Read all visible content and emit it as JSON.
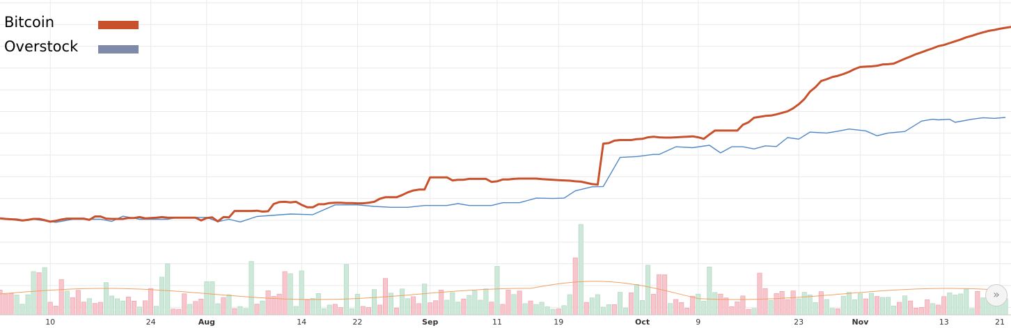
{
  "legend": {
    "items": [
      {
        "label": "Bitcoin",
        "color": "#c8502a"
      },
      {
        "label": "Overstock",
        "color": "#7e8aa8"
      }
    ]
  },
  "scroll_button": {
    "glyph": "»"
  },
  "chart_data": {
    "type": "line",
    "title": "",
    "xlabel": "",
    "ylabel": "",
    "grid": true,
    "legend_position": "top-left",
    "x_ticks": [
      {
        "label": "10",
        "index": 9,
        "major": false
      },
      {
        "label": "24",
        "index": 27,
        "major": false
      },
      {
        "label": "Aug",
        "index": 37,
        "major": true
      },
      {
        "label": "14",
        "index": 54,
        "major": false
      },
      {
        "label": "22",
        "index": 64,
        "major": false
      },
      {
        "label": "Sep",
        "index": 77,
        "major": true
      },
      {
        "label": "11",
        "index": 89,
        "major": false
      },
      {
        "label": "19",
        "index": 100,
        "major": false
      },
      {
        "label": "Oct",
        "index": 115,
        "major": true
      },
      {
        "label": "9",
        "index": 125,
        "major": false
      },
      {
        "label": "23",
        "index": 143,
        "major": false
      },
      {
        "label": "Nov",
        "index": 154,
        "major": true
      },
      {
        "label": "13",
        "index": 169,
        "major": false
      },
      {
        "label": "21",
        "index": 179,
        "major": false
      }
    ],
    "ylim": [
      0,
      1
    ],
    "volume_ylim": [
      0,
      1
    ],
    "series": [
      {
        "name": "Bitcoin",
        "color": "#c8502a",
        "kind": "line",
        "values": [
          0.286,
          0.284,
          0.283,
          0.282,
          0.279,
          0.281,
          0.284,
          0.284,
          0.28,
          0.275,
          0.278,
          0.282,
          0.285,
          0.285,
          0.285,
          0.285,
          0.281,
          0.292,
          0.292,
          0.285,
          0.284,
          0.284,
          0.284,
          0.287,
          0.287,
          0.29,
          0.286,
          0.287,
          0.288,
          0.29,
          0.288,
          0.288,
          0.288,
          0.288,
          0.288,
          0.288,
          0.279,
          0.287,
          0.289,
          0.276,
          0.29,
          0.289,
          0.31,
          0.31,
          0.31,
          0.31,
          0.311,
          0.308,
          0.309,
          0.333,
          0.339,
          0.34,
          0.338,
          0.34,
          0.33,
          0.322,
          0.322,
          0.332,
          0.332,
          0.336,
          0.337,
          0.337,
          0.336,
          0.336,
          0.335,
          0.335,
          0.337,
          0.34,
          0.35,
          0.355,
          0.355,
          0.355,
          0.362,
          0.371,
          0.377,
          0.38,
          0.38,
          0.42,
          0.42,
          0.42,
          0.42,
          0.41,
          0.412,
          0.412,
          0.415,
          0.415,
          0.415,
          0.415,
          0.405,
          0.407,
          0.413,
          0.413,
          0.415,
          0.416,
          0.416,
          0.416,
          0.416,
          0.414,
          0.413,
          0.412,
          0.411,
          0.41,
          0.409,
          0.407,
          0.406,
          0.402,
          0.398,
          0.396,
          0.53,
          0.532,
          0.54,
          0.542,
          0.542,
          0.542,
          0.545,
          0.546,
          0.551,
          0.553,
          0.551,
          0.55,
          0.55,
          0.551,
          0.552,
          0.553,
          0.554,
          0.551,
          0.546,
          0.56,
          0.573,
          0.573,
          0.573,
          0.573,
          0.573,
          0.592,
          0.6,
          0.615,
          0.618,
          0.621,
          0.622,
          0.626,
          0.631,
          0.636,
          0.646,
          0.659,
          0.676,
          0.7,
          0.715,
          0.735,
          0.741,
          0.748,
          0.752,
          0.758,
          0.765,
          0.774,
          0.781,
          0.782,
          0.783,
          0.785,
          0.789,
          0.79,
          0.792,
          0.8,
          0.808,
          0.815,
          0.823,
          0.829,
          0.836,
          0.842,
          0.849,
          0.853,
          0.859,
          0.865,
          0.871,
          0.878,
          0.883,
          0.889,
          0.894,
          0.899,
          0.902,
          0.906,
          0.909,
          0.912,
          0.915,
          0.918,
          0.921
        ],
        "points": [
          [
            0,
            0.286
          ],
          [
            4,
            0.277
          ],
          [
            6,
            0.283
          ],
          [
            10,
            0.273
          ],
          [
            13,
            0.283
          ],
          [
            18,
            0.283
          ],
          [
            20,
            0.276
          ],
          [
            22,
            0.293
          ],
          [
            25,
            0.283
          ],
          [
            30,
            0.283
          ],
          [
            32,
            0.289
          ],
          [
            37,
            0.289
          ],
          [
            39,
            0.275
          ],
          [
            41,
            0.283
          ],
          [
            43,
            0.274
          ],
          [
            46,
            0.292
          ],
          [
            52,
            0.3
          ],
          [
            56,
            0.298
          ],
          [
            60,
            0.33
          ],
          [
            64,
            0.33
          ],
          [
            67,
            0.325
          ],
          [
            70,
            0.322
          ],
          [
            73,
            0.322
          ],
          [
            76,
            0.328
          ],
          [
            80,
            0.328
          ],
          [
            82,
            0.334
          ],
          [
            84,
            0.328
          ],
          [
            88,
            0.328
          ],
          [
            90,
            0.337
          ],
          [
            93,
            0.337
          ],
          [
            96,
            0.352
          ],
          [
            99,
            0.351
          ],
          [
            101,
            0.352
          ],
          [
            103,
            0.376
          ],
          [
            106,
            0.389
          ],
          [
            108,
            0.39
          ],
          [
            111,
            0.485
          ],
          [
            114,
            0.488
          ],
          [
            117,
            0.495
          ],
          [
            118,
            0.495
          ],
          [
            121,
            0.52
          ],
          [
            124,
            0.517
          ],
          [
            127,
            0.525
          ],
          [
            129,
            0.5
          ],
          [
            131,
            0.52
          ],
          [
            133,
            0.52
          ],
          [
            135,
            0.513
          ],
          [
            137,
            0.523
          ],
          [
            139,
            0.521
          ],
          [
            141,
            0.55
          ],
          [
            143,
            0.545
          ],
          [
            145,
            0.568
          ],
          [
            148,
            0.565
          ],
          [
            150,
            0.571
          ],
          [
            152,
            0.578
          ],
          [
            155,
            0.572
          ],
          [
            157,
            0.556
          ],
          [
            159,
            0.565
          ],
          [
            162,
            0.57
          ],
          [
            165,
            0.604
          ],
          [
            167,
            0.61
          ],
          [
            168,
            0.608
          ],
          [
            170,
            0.61
          ],
          [
            171,
            0.6
          ],
          [
            174,
            0.61
          ],
          [
            176,
            0.615
          ],
          [
            178,
            0.613
          ],
          [
            180,
            0.616
          ]
        ],
        "note": "reserved"
      }
    ]
  }
}
